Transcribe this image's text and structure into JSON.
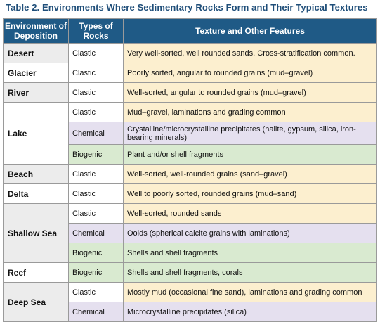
{
  "title": "Table 2. Environments Where Sedimentary Rocks Form and Their Typical Textures",
  "headers": {
    "environment": "Environment of Deposition",
    "types": "Types of Rocks",
    "texture": "Texture and Other Features"
  },
  "colors": {
    "header_bg": "#1f5a86",
    "clastic_bg": "#fcefcf",
    "chemical_bg": "#e5e0ef",
    "biogenic_bg": "#d9ead0",
    "title_color": "#1f4e79"
  },
  "rows": [
    {
      "environment": "Desert",
      "type": "Clastic",
      "texture": "Very well-sorted, well rounded sands. Cross-stratification common."
    },
    {
      "environment": "Glacier",
      "type": "Clastic",
      "texture": "Poorly sorted, angular to rounded grains (mud–gravel)"
    },
    {
      "environment": "River",
      "type": "Clastic",
      "texture": "Well-sorted, angular to rounded grains (mud–gravel)"
    },
    {
      "environment": "Lake",
      "type": "Clastic",
      "texture": "Mud–gravel, laminations and grading common"
    },
    {
      "environment": "",
      "type": "Chemical",
      "texture": "Crystalline/microcrystalline precipitates (halite, gypsum, silica, iron-bearing minerals)"
    },
    {
      "environment": "",
      "type": "Biogenic",
      "texture": "Plant and/or shell fragments"
    },
    {
      "environment": "Beach",
      "type": "Clastic",
      "texture": "Well-sorted, well-rounded grains (sand–gravel)"
    },
    {
      "environment": "Delta",
      "type": "Clastic",
      "texture": "Well to poorly sorted, rounded grains (mud–sand)"
    },
    {
      "environment": "Shallow Sea",
      "type": "Clastic",
      "texture": "Well-sorted, rounded sands"
    },
    {
      "environment": "",
      "type": "Chemical",
      "texture": "Ooids (spherical calcite grains with laminations)"
    },
    {
      "environment": "",
      "type": "Biogenic",
      "texture": "Shells and shell fragments"
    },
    {
      "environment": "Reef",
      "type": "Biogenic",
      "texture": "Shells and shell fragments, corals"
    },
    {
      "environment": "Deep Sea",
      "type": "Clastic",
      "texture": "Mostly mud (occasional fine sand), laminations and grading common"
    },
    {
      "environment": "",
      "type": "Chemical",
      "texture": "Microcrystalline precipitates (silica)"
    }
  ]
}
